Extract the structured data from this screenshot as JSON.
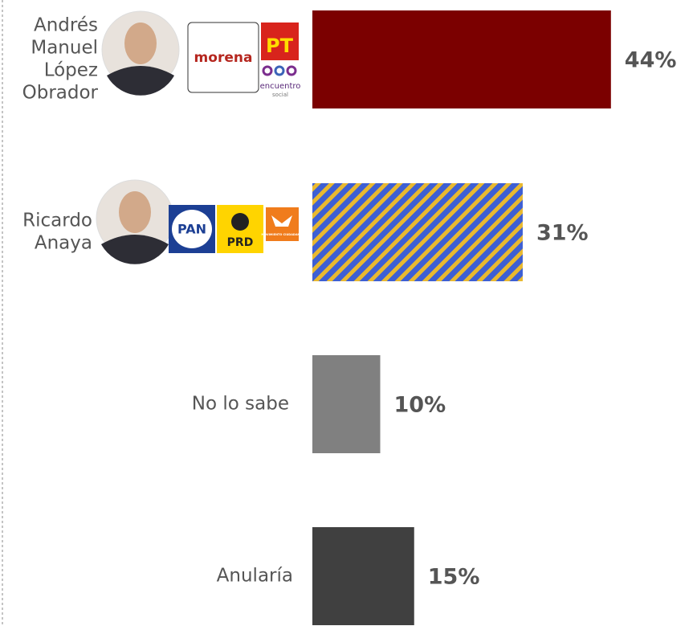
{
  "chart_data": {
    "type": "bar",
    "orientation": "horizontal",
    "categories": [
      [
        "Andrés",
        "Manuel",
        "López",
        "Obrador"
      ],
      [
        "Ricardo",
        "Anaya"
      ],
      [
        "No lo sabe"
      ],
      [
        "Anularía"
      ]
    ],
    "party_logos": [
      [
        "morena",
        "PT",
        "encuentro",
        "social"
      ],
      [
        "PAN",
        "PRD",
        "MOVIMIENTO CIUDADANO"
      ],
      [],
      []
    ],
    "values": [
      44,
      31,
      10,
      15
    ],
    "value_labels": [
      "44%",
      "31%",
      "10%",
      "15%"
    ],
    "colors": [
      "#7b0000",
      [
        "#3d5fd4",
        "#e9b92f"
      ],
      "#808080",
      "#404040"
    ]
  }
}
